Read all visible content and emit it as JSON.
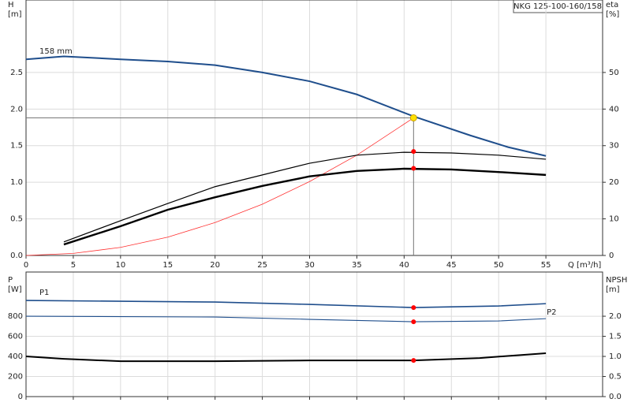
{
  "title": "NKG 125-100-160/158",
  "chart_data": [
    {
      "type": "line",
      "xlabel": "Q [m³/h]",
      "ylabel": "H",
      "yunit": "[m]",
      "y2label": "eta",
      "y2unit": "[%]",
      "xlim": [
        0,
        61
      ],
      "xticks": [
        0,
        5,
        10,
        15,
        20,
        25,
        30,
        35,
        40,
        45,
        50,
        55
      ],
      "ylim": [
        0,
        3.49
      ],
      "yticks": [
        {
          "value": 0,
          "label": "0.0"
        },
        0.5,
        {
          "value": 1,
          "label": "1.0"
        },
        1.5,
        {
          "value": 2,
          "label": "2.0"
        },
        2.5
      ],
      "y2lim": [
        0,
        69.8
      ],
      "y2ticks": [
        0,
        10,
        20,
        30,
        40,
        50
      ],
      "grid": true,
      "duty_point": {
        "x": 41,
        "y": 1.88,
        "color": "#ffe000"
      },
      "series": [
        {
          "name": "158 mm",
          "color": "#1f4e8c",
          "width": 2,
          "x": [
            0,
            4,
            10,
            15,
            20,
            25,
            30,
            35,
            41,
            47,
            51,
            55
          ],
          "values": [
            2.68,
            2.72,
            2.68,
            2.65,
            2.6,
            2.5,
            2.38,
            2.2,
            1.9,
            1.64,
            1.48,
            1.36
          ]
        },
        {
          "color": "#ff3030",
          "width": 0.8,
          "x": [
            0,
            5,
            10,
            15,
            20,
            25,
            30,
            35,
            41
          ],
          "values": [
            0,
            0.028,
            0.11,
            0.25,
            0.45,
            0.7,
            1.01,
            1.37,
            1.88
          ]
        },
        {
          "color": "#000000",
          "width": 1.2,
          "axis": "y2",
          "x": [
            4,
            10,
            15,
            20,
            25,
            30,
            35,
            40,
            45,
            50,
            55
          ],
          "values": [
            3.7,
            9.5,
            14.2,
            18.8,
            22,
            25.2,
            27.4,
            28.2,
            28,
            27.4,
            26.3
          ],
          "marker": {
            "x": 41,
            "y": 28.4,
            "color": "#ff0000"
          }
        },
        {
          "color": "#000000",
          "width": 2.4,
          "axis": "y2",
          "x": [
            4,
            10,
            15,
            20,
            25,
            30,
            35,
            40,
            45,
            50,
            55
          ],
          "values": [
            3,
            8,
            12.5,
            15.9,
            19,
            21.6,
            23.1,
            23.7,
            23.5,
            22.8,
            22
          ],
          "marker": {
            "x": 41,
            "y": 23.8,
            "color": "#ff0000"
          }
        }
      ]
    },
    {
      "type": "line",
      "ylabel": "P",
      "yunit": "[W]",
      "y2label": "NPSH",
      "y2unit": "[m]",
      "xlim": [
        0,
        61
      ],
      "xticks": [
        0,
        5,
        10,
        15,
        20,
        25,
        30,
        35,
        40,
        45,
        50,
        55
      ],
      "ylim": [
        0,
        1240
      ],
      "yticks": [
        0,
        200,
        400,
        600,
        800
      ],
      "y2lim": [
        0,
        3.1
      ],
      "y2ticks": [
        {
          "value": 0,
          "label": "0.0"
        },
        0.5,
        {
          "value": 1,
          "label": "1.0"
        },
        1.5,
        {
          "value": 2,
          "label": "2.0"
        }
      ],
      "grid": true,
      "series": [
        {
          "name": "P1",
          "color": "#1f4e8c",
          "width": 1.6,
          "x": [
            0,
            10,
            20,
            30,
            41,
            50,
            55
          ],
          "values": [
            957,
            949,
            941,
            918,
            886,
            902,
            925
          ],
          "marker": {
            "x": 41,
            "y": 886,
            "color": "#ff0000"
          }
        },
        {
          "name": "P2",
          "color": "#1f4e8c",
          "width": 1.1,
          "x": [
            0,
            20,
            30,
            41,
            50,
            55
          ],
          "values": [
            800,
            792,
            769,
            745,
            753,
            776
          ],
          "marker": {
            "x": 41,
            "y": 745,
            "color": "#ff0000"
          }
        },
        {
          "color": "#000000",
          "width": 2,
          "axis": "y2",
          "x": [
            0,
            4,
            10,
            20,
            30,
            41,
            48,
            55
          ],
          "values": [
            1,
            0.94,
            0.88,
            0.88,
            0.9,
            0.9,
            0.96,
            1.08
          ],
          "marker": {
            "x": 41,
            "y": 0.9,
            "color": "#ff0000"
          }
        }
      ]
    }
  ]
}
